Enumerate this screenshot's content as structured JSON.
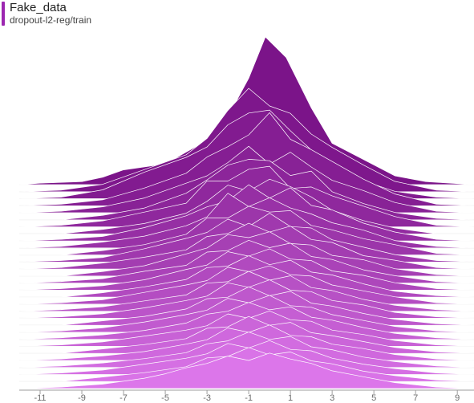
{
  "header": {
    "title": "Fake_data",
    "subtitle": "dropout-l2-reg/train"
  },
  "colors": {
    "series_swatch": "#9c27b0",
    "oldest_step": "#7b1489",
    "newest_step": "#dc76ea",
    "ridge_line": "#ffffff",
    "baseline": "#e3e3e3",
    "axis": "#9e9e9e"
  },
  "chart_data": {
    "type": "area",
    "subtype": "histogram-ridgeline",
    "series_name": "dropout-l2-reg/train",
    "xlim": [
      -12,
      9.8
    ],
    "x_ticks": [
      -11,
      -9,
      -7,
      -5,
      -3,
      -1,
      1,
      3,
      5,
      7,
      9
    ],
    "x_tick_labels": [
      "-11",
      "-9",
      "-7",
      "-5",
      "-3",
      "-1",
      "1",
      "3",
      "5",
      "7",
      "9"
    ],
    "ylabel": "",
    "xlabel": "",
    "steps": 30,
    "grid": false,
    "ridges": [
      {
        "step": 0,
        "x": [
          -12,
          -11,
          -9,
          -8,
          -7,
          -5,
          -4,
          -3,
          -2,
          -1,
          -0.2,
          0.8,
          2,
          3,
          4.5,
          6,
          7.5,
          9.8
        ],
        "y": [
          0.0,
          0.01,
          0.02,
          0.05,
          0.1,
          0.14,
          0.22,
          0.3,
          0.46,
          0.72,
          1.0,
          0.86,
          0.52,
          0.28,
          0.17,
          0.06,
          0.02,
          0.0
        ]
      },
      {
        "step": 1,
        "x": [
          -12,
          -10,
          -8,
          -6,
          -4,
          -3,
          -2,
          -1,
          0,
          1,
          2,
          3,
          4.5,
          6,
          8,
          9.8
        ],
        "y": [
          0.0,
          0.01,
          0.05,
          0.15,
          0.25,
          0.36,
          0.55,
          0.7,
          0.58,
          0.53,
          0.39,
          0.3,
          0.18,
          0.07,
          0.01,
          0.0
        ]
      },
      {
        "step": 2,
        "x": [
          -12,
          -10,
          -8,
          -6,
          -4,
          -3,
          -2,
          -1,
          0,
          1,
          2,
          3,
          4.5,
          6,
          8,
          9.8
        ],
        "y": [
          0.0,
          0.01,
          0.06,
          0.18,
          0.28,
          0.35,
          0.5,
          0.58,
          0.6,
          0.46,
          0.33,
          0.22,
          0.12,
          0.05,
          0.01,
          0.0
        ]
      },
      {
        "step": 3,
        "x": [
          -12,
          -10,
          -8,
          -6,
          -4,
          -3,
          -2,
          -1,
          0,
          1,
          2,
          3,
          4.5,
          6,
          8,
          9.8
        ],
        "y": [
          0.0,
          0.01,
          0.04,
          0.12,
          0.22,
          0.33,
          0.4,
          0.48,
          0.63,
          0.45,
          0.38,
          0.3,
          0.18,
          0.08,
          0.01,
          0.0
        ]
      },
      {
        "step": 4,
        "x": [
          -12,
          -10,
          -8,
          -6,
          -4,
          -3,
          -2,
          -1,
          0,
          1,
          2,
          3,
          4.5,
          6,
          8,
          9.8
        ],
        "y": [
          0.0,
          0.01,
          0.04,
          0.1,
          0.2,
          0.25,
          0.34,
          0.45,
          0.33,
          0.41,
          0.31,
          0.22,
          0.15,
          0.07,
          0.01,
          0.0
        ]
      },
      {
        "step": 5,
        "x": [
          -12,
          -10,
          -8,
          -6,
          -4,
          -3,
          -2,
          -1,
          0,
          1,
          2,
          3,
          4.5,
          6,
          8,
          9.8
        ],
        "y": [
          0.0,
          0.0,
          0.03,
          0.08,
          0.18,
          0.27,
          0.37,
          0.41,
          0.4,
          0.3,
          0.33,
          0.19,
          0.11,
          0.05,
          0.01,
          0.0
        ]
      },
      {
        "step": 6,
        "x": [
          -12,
          -10,
          -8,
          -6,
          -4,
          -3,
          -2,
          -1,
          0,
          1,
          2,
          3,
          4.5,
          6,
          8,
          9.8
        ],
        "y": [
          0.0,
          0.01,
          0.04,
          0.1,
          0.16,
          0.31,
          0.31,
          0.39,
          0.41,
          0.26,
          0.27,
          0.21,
          0.14,
          0.07,
          0.01,
          0.0
        ]
      },
      {
        "step": 7,
        "x": [
          -12,
          -10,
          -8,
          -6,
          -4,
          -3,
          -2,
          -1,
          0,
          1,
          2,
          3,
          4.5,
          6,
          8,
          9.8
        ],
        "y": [
          0.0,
          0.0,
          0.03,
          0.07,
          0.14,
          0.22,
          0.33,
          0.29,
          0.37,
          0.32,
          0.25,
          0.16,
          0.09,
          0.04,
          0.0,
          0.0
        ]
      },
      {
        "step": 8,
        "x": [
          -12,
          -10,
          -8,
          -6,
          -4,
          -3,
          -2,
          -1,
          0,
          1,
          2,
          3,
          4.5,
          6,
          8,
          9.8
        ],
        "y": [
          0.0,
          0.01,
          0.03,
          0.09,
          0.17,
          0.23,
          0.27,
          0.38,
          0.29,
          0.36,
          0.24,
          0.21,
          0.12,
          0.06,
          0.01,
          0.0
        ]
      },
      {
        "step": 9,
        "x": [
          -12,
          -10,
          -8,
          -6,
          -4,
          -3,
          -2,
          -1,
          0,
          1,
          2,
          3,
          4.5,
          6,
          8,
          9.8
        ],
        "y": [
          0.0,
          0.01,
          0.04,
          0.08,
          0.15,
          0.21,
          0.37,
          0.28,
          0.34,
          0.27,
          0.23,
          0.17,
          0.12,
          0.05,
          0.01,
          0.0
        ]
      },
      {
        "step": 10,
        "x": [
          -12,
          -10,
          -8,
          -6,
          -4,
          -3,
          -2,
          -1,
          0,
          1,
          2,
          3,
          4.5,
          6,
          8,
          9.8
        ],
        "y": [
          0.0,
          0.0,
          0.03,
          0.07,
          0.14,
          0.25,
          0.25,
          0.33,
          0.29,
          0.3,
          0.2,
          0.17,
          0.11,
          0.07,
          0.01,
          0.0
        ]
      },
      {
        "step": 11,
        "x": [
          -12,
          -10,
          -8,
          -6,
          -4,
          -3,
          -2,
          -1,
          0,
          1,
          2,
          3,
          4.5,
          6,
          8,
          9.8
        ],
        "y": [
          0.0,
          0.01,
          0.03,
          0.09,
          0.16,
          0.2,
          0.29,
          0.24,
          0.33,
          0.24,
          0.23,
          0.15,
          0.1,
          0.05,
          0.01,
          0.0
        ]
      },
      {
        "step": 12,
        "x": [
          -12,
          -10,
          -8,
          -6,
          -4,
          -3,
          -2,
          -1,
          0,
          1,
          2,
          3,
          4.5,
          6,
          8,
          9.8
        ],
        "y": [
          0.0,
          0.01,
          0.04,
          0.08,
          0.13,
          0.22,
          0.24,
          0.31,
          0.25,
          0.29,
          0.2,
          0.18,
          0.09,
          0.06,
          0.01,
          0.0
        ]
      },
      {
        "step": 13,
        "x": [
          -12,
          -10,
          -8,
          -6,
          -4,
          -3,
          -2,
          -1,
          0,
          1,
          2,
          3,
          4.5,
          6,
          8,
          9.8
        ],
        "y": [
          0.0,
          0.0,
          0.03,
          0.07,
          0.15,
          0.19,
          0.28,
          0.26,
          0.3,
          0.22,
          0.21,
          0.14,
          0.11,
          0.05,
          0.01,
          0.0
        ]
      },
      {
        "step": 14,
        "x": [
          -12,
          -10,
          -8,
          -6,
          -4,
          -3,
          -2,
          -1,
          0,
          1,
          2,
          3,
          4.5,
          6,
          8,
          9.8
        ],
        "y": [
          0.0,
          0.01,
          0.03,
          0.08,
          0.12,
          0.21,
          0.22,
          0.29,
          0.24,
          0.27,
          0.18,
          0.16,
          0.09,
          0.05,
          0.01,
          0.0
        ]
      },
      {
        "step": 15,
        "x": [
          -12,
          -10,
          -8,
          -6,
          -4,
          -3,
          -2,
          -1,
          0,
          1,
          2,
          3,
          4.5,
          6,
          8,
          9.8
        ],
        "y": [
          0.0,
          0.01,
          0.03,
          0.07,
          0.14,
          0.17,
          0.26,
          0.23,
          0.28,
          0.21,
          0.2,
          0.13,
          0.1,
          0.05,
          0.01,
          0.0
        ]
      },
      {
        "step": 16,
        "x": [
          -12,
          -10,
          -8,
          -6,
          -4,
          -3,
          -2,
          -1,
          0,
          1,
          2,
          3,
          4.5,
          6,
          8,
          9.8
        ],
        "y": [
          0.0,
          0.0,
          0.03,
          0.07,
          0.12,
          0.2,
          0.21,
          0.28,
          0.22,
          0.25,
          0.17,
          0.15,
          0.09,
          0.04,
          0.01,
          0.0
        ]
      },
      {
        "step": 17,
        "x": [
          -12,
          -10,
          -8,
          -6,
          -4,
          -3,
          -2,
          -1,
          0,
          1,
          2,
          3,
          4.5,
          6,
          8,
          9.8
        ],
        "y": [
          0.0,
          0.01,
          0.03,
          0.08,
          0.13,
          0.16,
          0.25,
          0.22,
          0.26,
          0.2,
          0.19,
          0.13,
          0.09,
          0.05,
          0.01,
          0.0
        ]
      },
      {
        "step": 18,
        "x": [
          -12,
          -10,
          -8,
          -6,
          -4,
          -3,
          -2,
          -1,
          0,
          1,
          2,
          3,
          4.5,
          6,
          8,
          9.8
        ],
        "y": [
          0.0,
          0.01,
          0.03,
          0.07,
          0.11,
          0.19,
          0.2,
          0.27,
          0.21,
          0.24,
          0.16,
          0.14,
          0.08,
          0.04,
          0.01,
          0.0
        ]
      },
      {
        "step": 19,
        "x": [
          -12,
          -10,
          -8,
          -6,
          -4,
          -3,
          -2,
          -1,
          0,
          1,
          2,
          3,
          4.5,
          6,
          8,
          9.8
        ],
        "y": [
          0.0,
          0.01,
          0.03,
          0.07,
          0.12,
          0.15,
          0.24,
          0.21,
          0.26,
          0.19,
          0.18,
          0.12,
          0.09,
          0.04,
          0.01,
          0.0
        ]
      },
      {
        "step": 20,
        "x": [
          -12,
          -10,
          -8,
          -6,
          -4,
          -3,
          -2,
          -1,
          0,
          1,
          2,
          3,
          4.5,
          6,
          8,
          9.8
        ],
        "y": [
          0.0,
          0.0,
          0.03,
          0.06,
          0.11,
          0.18,
          0.19,
          0.26,
          0.2,
          0.23,
          0.15,
          0.13,
          0.08,
          0.04,
          0.01,
          0.0
        ]
      },
      {
        "step": 21,
        "x": [
          -12,
          -10,
          -8,
          -6,
          -4,
          -3,
          -2,
          -1,
          0,
          1,
          2,
          3,
          4.5,
          6,
          8,
          9.8
        ],
        "y": [
          0.0,
          0.01,
          0.03,
          0.07,
          0.12,
          0.15,
          0.23,
          0.2,
          0.25,
          0.18,
          0.17,
          0.12,
          0.08,
          0.04,
          0.01,
          0.0
        ]
      },
      {
        "step": 22,
        "x": [
          -12,
          -10,
          -8,
          -6,
          -4,
          -3,
          -2,
          -1,
          0,
          1,
          2,
          3,
          4.5,
          6,
          8,
          9.8
        ],
        "y": [
          0.0,
          0.01,
          0.03,
          0.06,
          0.11,
          0.17,
          0.19,
          0.25,
          0.2,
          0.22,
          0.15,
          0.13,
          0.08,
          0.04,
          0.01,
          0.0
        ]
      },
      {
        "step": 23,
        "x": [
          -12,
          -10,
          -8,
          -6,
          -4,
          -3,
          -2,
          -1,
          0,
          1,
          2,
          3,
          4.5,
          6,
          8,
          9.8
        ],
        "y": [
          0.0,
          0.01,
          0.03,
          0.07,
          0.11,
          0.14,
          0.22,
          0.19,
          0.24,
          0.18,
          0.17,
          0.11,
          0.08,
          0.04,
          0.01,
          0.0
        ]
      },
      {
        "step": 24,
        "x": [
          -12,
          -10,
          -8,
          -6,
          -4,
          -3,
          -2,
          -1,
          0,
          1,
          2,
          3,
          4.5,
          6,
          8,
          9.8
        ],
        "y": [
          0.0,
          0.0,
          0.03,
          0.06,
          0.1,
          0.17,
          0.18,
          0.25,
          0.19,
          0.21,
          0.14,
          0.12,
          0.08,
          0.04,
          0.01,
          0.0
        ]
      },
      {
        "step": 25,
        "x": [
          -12,
          -10,
          -8,
          -6,
          -4,
          -3,
          -2,
          -1,
          0,
          1,
          2,
          3,
          4.5,
          6,
          8,
          9.8
        ],
        "y": [
          0.0,
          0.01,
          0.03,
          0.06,
          0.11,
          0.14,
          0.22,
          0.19,
          0.24,
          0.17,
          0.16,
          0.11,
          0.08,
          0.04,
          0.01,
          0.0
        ]
      },
      {
        "step": 26,
        "x": [
          -12,
          -10,
          -8,
          -6,
          -4,
          -3,
          -2,
          -1,
          0,
          1,
          2,
          3,
          4.5,
          6,
          8,
          9.8
        ],
        "y": [
          0.0,
          0.01,
          0.03,
          0.06,
          0.1,
          0.16,
          0.18,
          0.24,
          0.19,
          0.21,
          0.14,
          0.12,
          0.07,
          0.04,
          0.01,
          0.0
        ]
      },
      {
        "step": 27,
        "x": [
          -12,
          -10,
          -8,
          -6,
          -4,
          -3,
          -2,
          -1,
          0,
          1,
          2,
          3,
          4.5,
          6,
          8,
          9.8
        ],
        "y": [
          0.0,
          0.01,
          0.03,
          0.07,
          0.11,
          0.14,
          0.21,
          0.18,
          0.23,
          0.17,
          0.16,
          0.11,
          0.07,
          0.04,
          0.01,
          0.0
        ]
      },
      {
        "step": 28,
        "x": [
          -12,
          -10,
          -8,
          -6,
          -4,
          -3,
          -2,
          -1,
          0,
          1,
          2,
          3,
          4.5,
          6,
          8,
          9.8
        ],
        "y": [
          0.0,
          0.0,
          0.03,
          0.06,
          0.1,
          0.16,
          0.17,
          0.23,
          0.18,
          0.2,
          0.14,
          0.12,
          0.07,
          0.04,
          0.01,
          0.0
        ]
      },
      {
        "step": 29,
        "x": [
          -12,
          -10,
          -8,
          -6,
          -5,
          -4,
          -3,
          -2,
          -1,
          0,
          1,
          2,
          3,
          4.5,
          6,
          8,
          9.8
        ],
        "y": [
          0.0,
          0.01,
          0.03,
          0.07,
          0.1,
          0.14,
          0.17,
          0.22,
          0.19,
          0.24,
          0.2,
          0.17,
          0.12,
          0.08,
          0.04,
          0.01,
          0.0
        ]
      }
    ]
  }
}
